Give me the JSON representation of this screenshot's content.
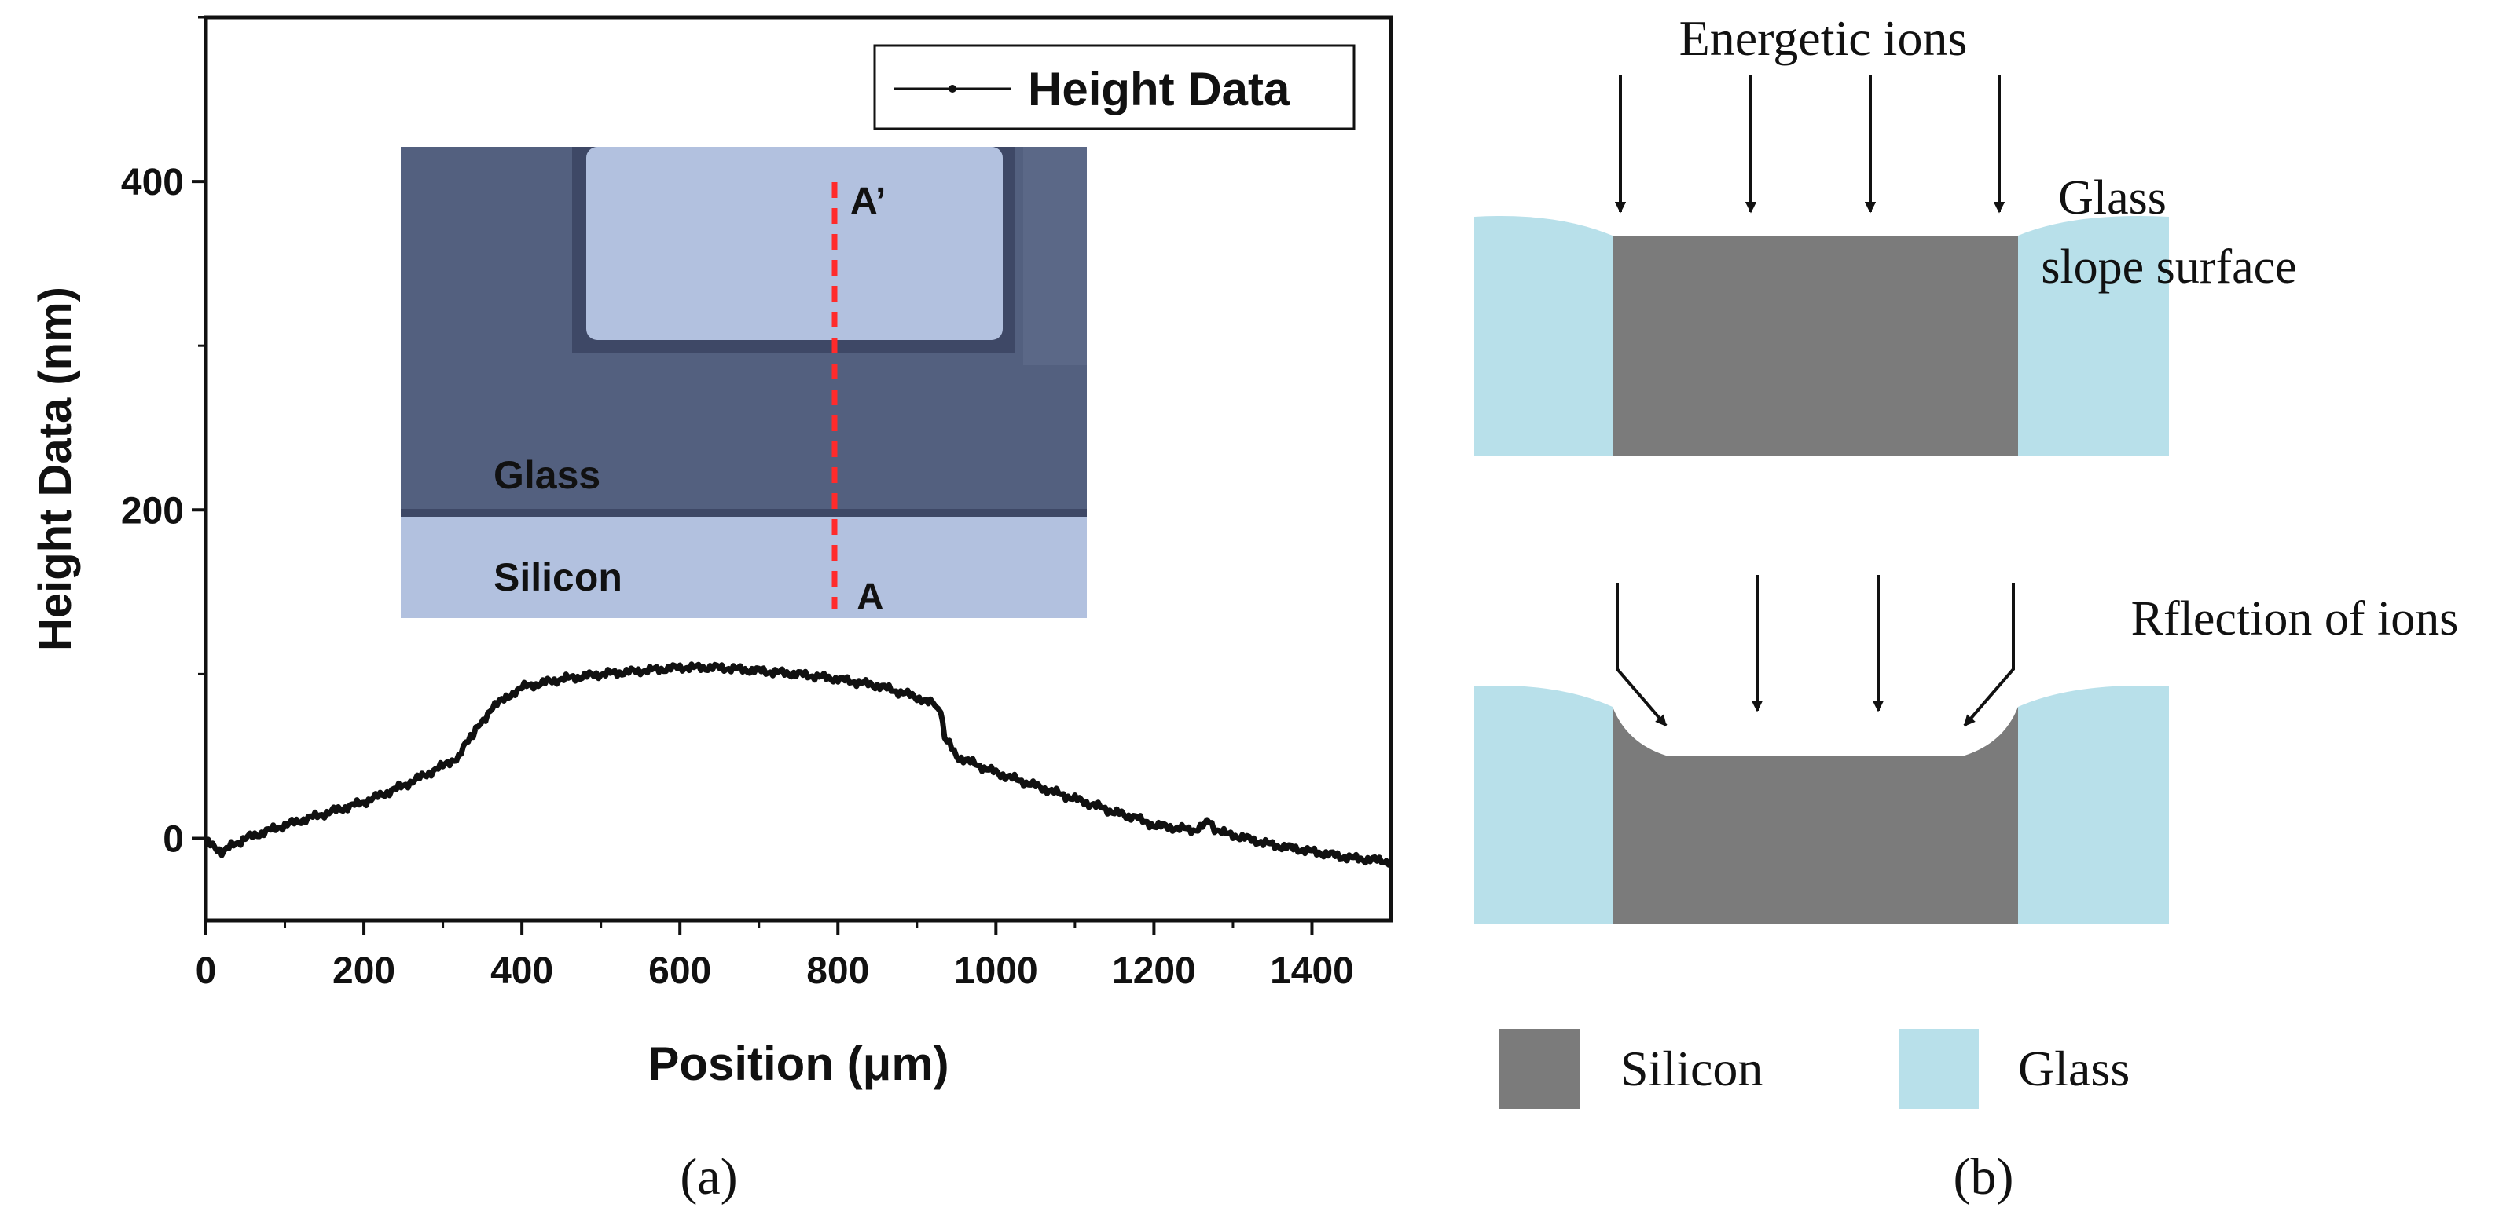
{
  "colors": {
    "line": "#111111",
    "inset_glass": "#53607f",
    "inset_silicon": "#b2c1df",
    "inset_cut_line": "#ff2b2b",
    "glass_fill": "#b8e0ea",
    "silicon_fill": "#7b7b7b",
    "arrow": "#111111"
  },
  "chart_data": {
    "type": "line",
    "xlabel": "Position (μm)",
    "ylabel": "Height Data (nm)",
    "xlim": [
      0,
      1500
    ],
    "ylim": [
      -50,
      500
    ],
    "x_ticks": [
      "0",
      "200",
      "400",
      "600",
      "800",
      "1000",
      "1200",
      "1400"
    ],
    "y_ticks": [
      "0",
      "200",
      "400"
    ],
    "legend_position": "top-right",
    "grid": false,
    "series": [
      {
        "name": "Height Data",
        "x": [
          0,
          20,
          50,
          100,
          150,
          200,
          250,
          300,
          320,
          335,
          345,
          360,
          380,
          400,
          450,
          500,
          550,
          600,
          650,
          700,
          750,
          800,
          850,
          900,
          920,
          930,
          935,
          950,
          1000,
          1050,
          1100,
          1150,
          1180,
          1200,
          1250,
          1270,
          1280,
          1300,
          1350,
          1400,
          1450,
          1500
        ],
        "y": [
          -2,
          -8,
          0,
          8,
          15,
          22,
          32,
          44,
          50,
          62,
          68,
          78,
          86,
          92,
          97,
          100,
          102,
          104,
          104,
          102,
          100,
          97,
          93,
          86,
          82,
          78,
          62,
          50,
          40,
          32,
          24,
          16,
          12,
          8,
          5,
          10,
          4,
          2,
          -4,
          -8,
          -12,
          -14
        ]
      }
    ],
    "panel_label": "(a)"
  },
  "inset": {
    "label_a_prime": "A’",
    "label_a": "A",
    "label_glass": "Glass",
    "label_silicon": "Silicon"
  },
  "schematic": {
    "top_caption": "Energetic ions",
    "top_right_label_line1": "Glass",
    "top_right_label_line2": "slope surface",
    "bottom_caption": "Rflection of ions",
    "legend_silicon": "Silicon",
    "legend_glass": "Glass",
    "panel_label": "(b)"
  }
}
